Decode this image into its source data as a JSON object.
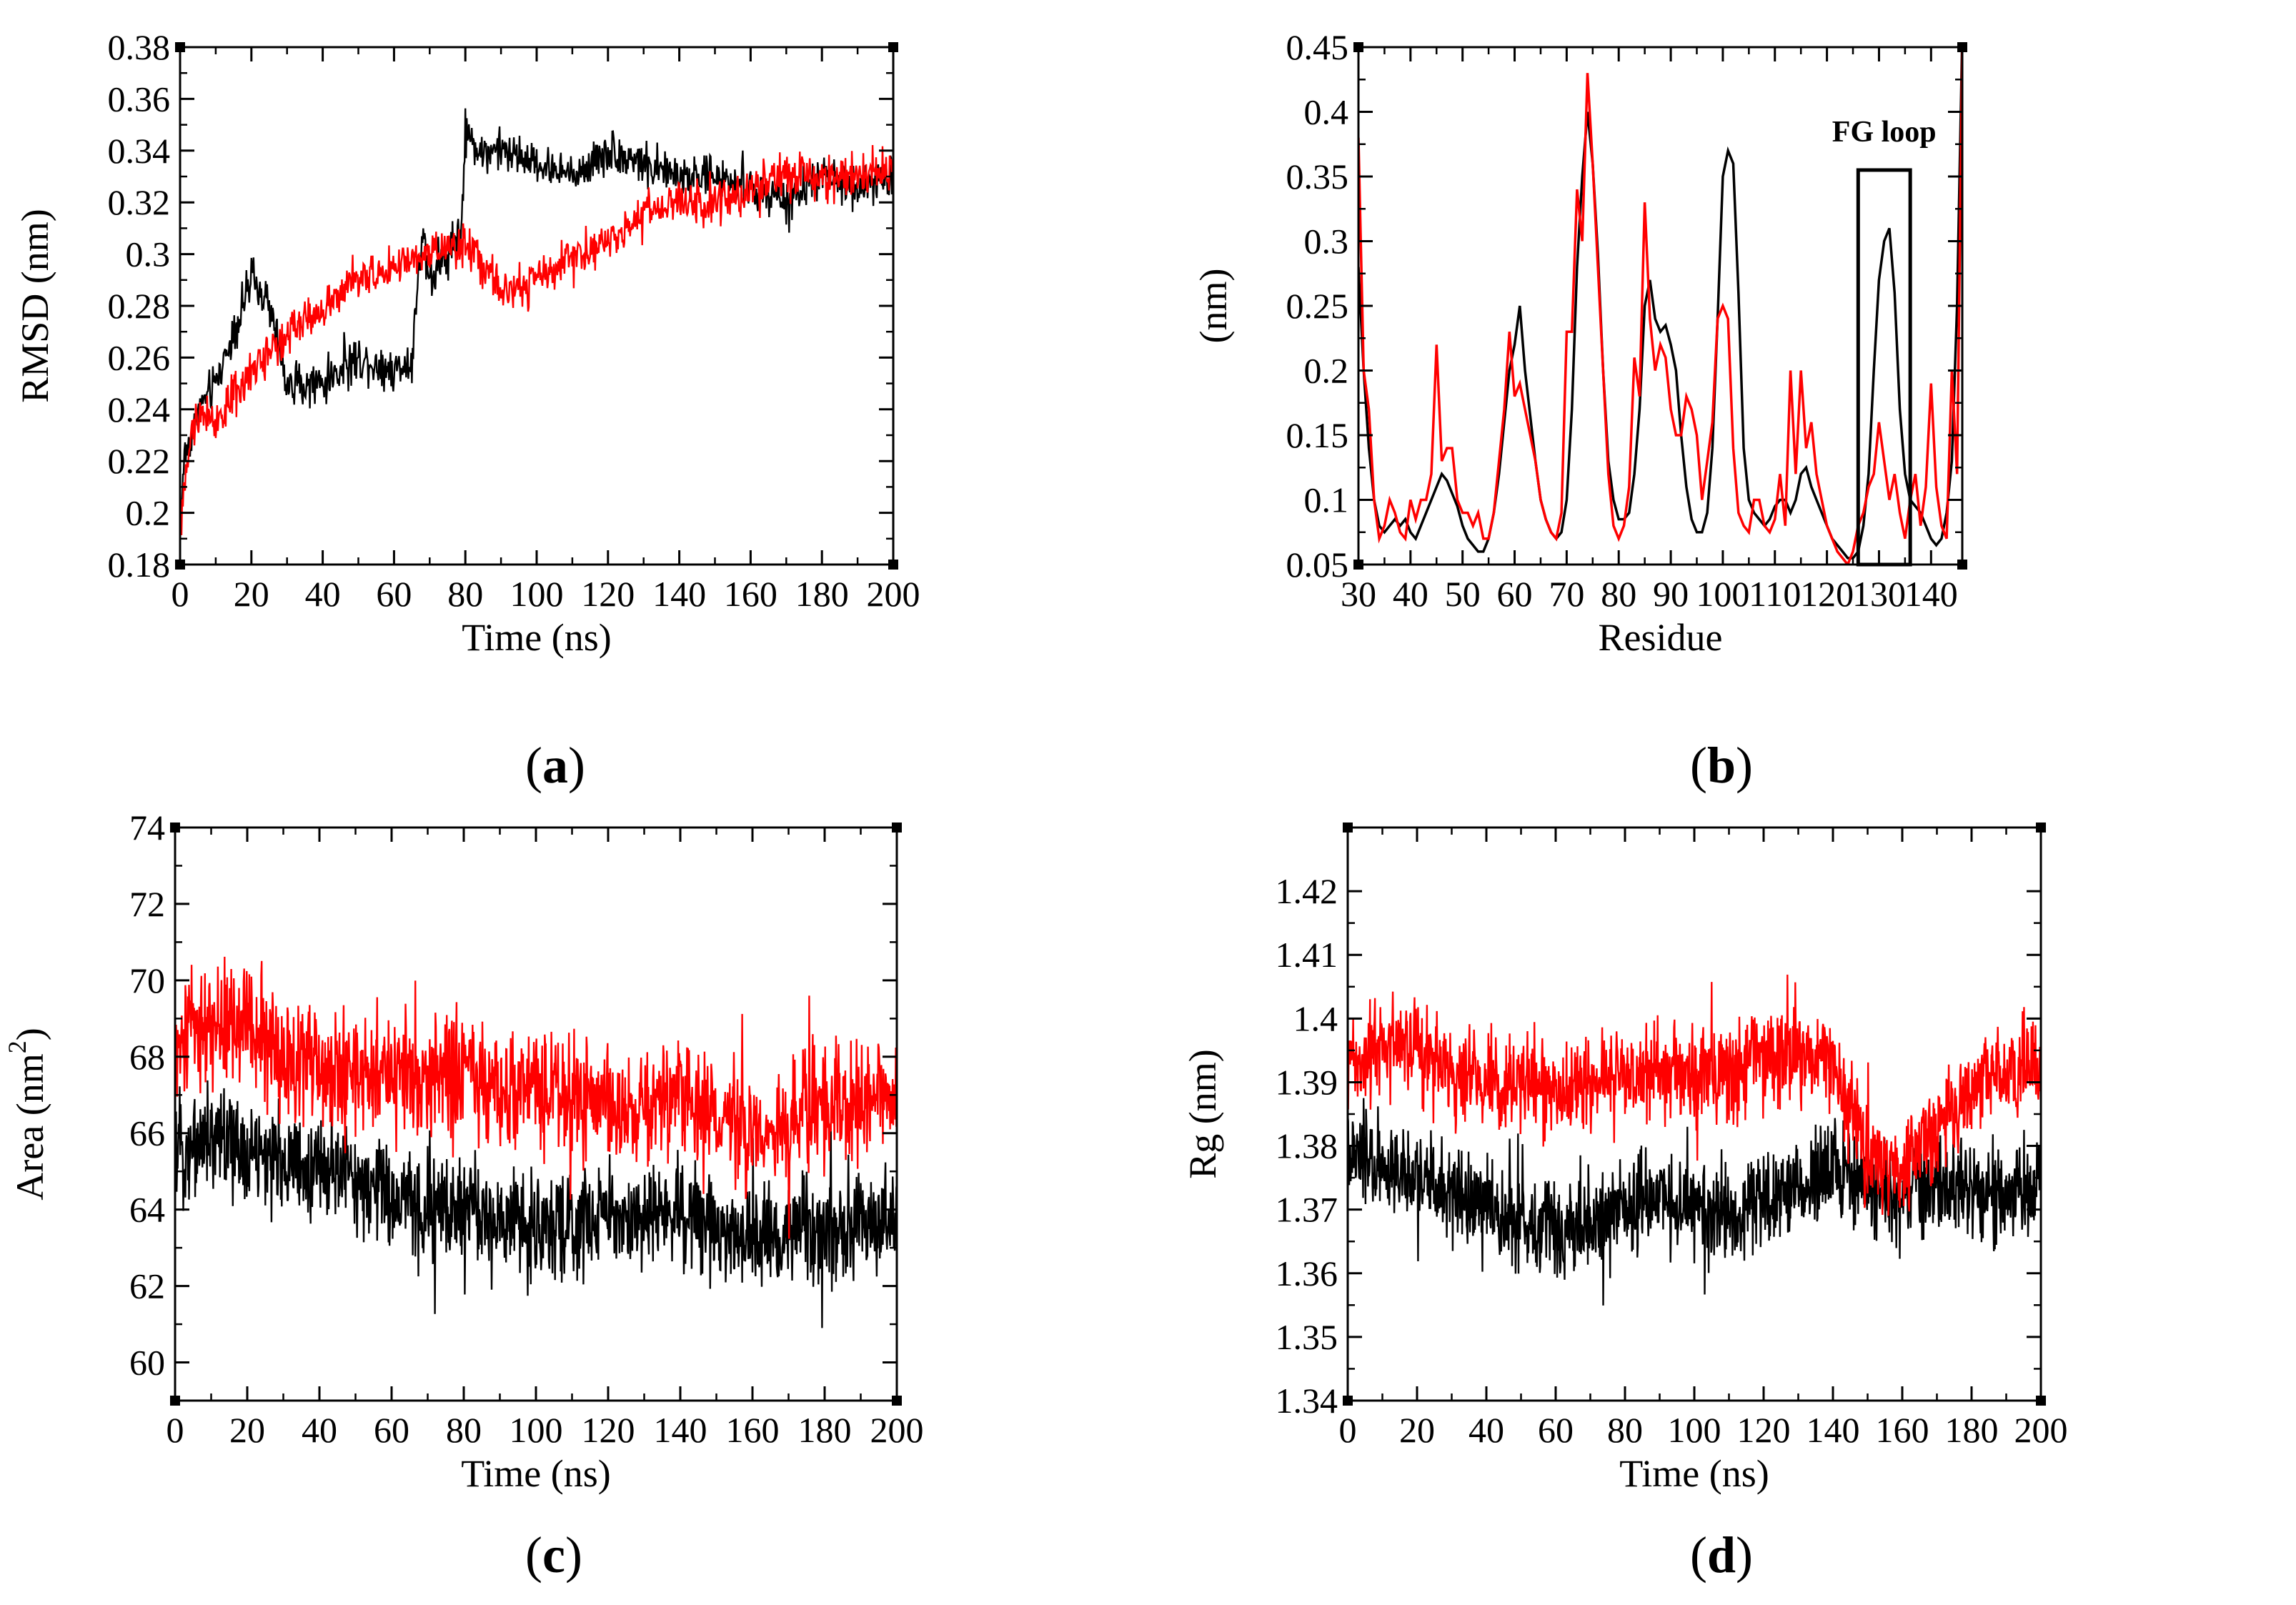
{
  "figure": {
    "captions": [
      "a",
      "b",
      "c",
      "d"
    ]
  },
  "chart_data": [
    {
      "id": "a",
      "type": "line",
      "title": "",
      "xlabel": "Time (ns)",
      "ylabel": "RMSD (nm)",
      "xlim": [
        0,
        200
      ],
      "ylim": [
        0.18,
        0.38
      ],
      "xticks": [
        0,
        20,
        40,
        60,
        80,
        100,
        120,
        140,
        160,
        180,
        200
      ],
      "yticks": [
        0.18,
        0.2,
        0.22,
        0.24,
        0.26,
        0.28,
        0.3,
        0.32,
        0.34,
        0.36,
        0.38
      ],
      "xtick_labels": [
        "0",
        "20",
        "40",
        "60",
        "80",
        "100",
        "120",
        "140",
        "160",
        "180",
        "200"
      ],
      "ytick_labels": [
        "0.18",
        "0.2",
        "0.22",
        "0.24",
        "0.26",
        "0.28",
        "0.3",
        "0.32",
        "0.34",
        "0.36",
        "0.38"
      ],
      "noise_series": [
        {
          "name": "black",
          "color": "#000000",
          "trend_x": [
            0,
            1,
            5,
            10,
            15,
            20,
            25,
            30,
            40,
            50,
            60,
            65,
            68,
            70,
            75,
            79,
            80,
            85,
            90,
            100,
            110,
            120,
            130,
            140,
            150,
            160,
            170,
            180,
            190,
            200
          ],
          "trend_y": [
            0.19,
            0.22,
            0.24,
            0.25,
            0.27,
            0.29,
            0.28,
            0.25,
            0.25,
            0.26,
            0.255,
            0.26,
            0.31,
            0.29,
            0.3,
            0.31,
            0.345,
            0.34,
            0.34,
            0.335,
            0.33,
            0.34,
            0.335,
            0.33,
            0.33,
            0.325,
            0.32,
            0.33,
            0.325,
            0.33
          ],
          "amplitude": 0.012,
          "samples": 1000
        },
        {
          "name": "red",
          "color": "#ff0000",
          "trend_x": [
            0,
            1,
            5,
            10,
            20,
            30,
            40,
            50,
            60,
            70,
            80,
            90,
            100,
            110,
            120,
            130,
            140,
            150,
            160,
            170,
            180,
            190,
            200
          ],
          "trend_y": [
            0.19,
            0.21,
            0.24,
            0.235,
            0.255,
            0.27,
            0.28,
            0.29,
            0.295,
            0.3,
            0.305,
            0.285,
            0.29,
            0.3,
            0.305,
            0.315,
            0.32,
            0.32,
            0.325,
            0.33,
            0.33,
            0.33,
            0.335
          ],
          "amplitude": 0.012,
          "samples": 1000
        }
      ]
    },
    {
      "id": "b",
      "type": "line",
      "title": "",
      "xlabel": "Residue",
      "ylabel": "(nm)",
      "xlim": [
        30,
        146
      ],
      "ylim": [
        0.05,
        0.45
      ],
      "xticks": [
        30,
        40,
        50,
        60,
        70,
        80,
        90,
        100,
        110,
        120,
        130,
        140
      ],
      "yticks": [
        0.05,
        0.1,
        0.15,
        0.2,
        0.25,
        0.3,
        0.35,
        0.4,
        0.45
      ],
      "xtick_labels": [
        "30",
        "40",
        "50",
        "60",
        "70",
        "80",
        "90",
        "100",
        "110",
        "120",
        "130",
        "140"
      ],
      "ytick_labels": [
        "0.05",
        "0.1",
        "0.15",
        "0.2",
        "0.25",
        "0.3",
        "0.35",
        "0.4",
        "0.45"
      ],
      "annotation": {
        "text": "FG loop",
        "x_range": [
          126,
          136
        ],
        "y_range": [
          0.05,
          0.355
        ]
      },
      "series": [
        {
          "name": "black",
          "color": "#000000",
          "x": [
            30,
            31,
            32,
            33,
            34,
            35,
            36,
            37,
            38,
            39,
            40,
            41,
            42,
            43,
            44,
            45,
            46,
            47,
            48,
            49,
            50,
            51,
            52,
            53,
            54,
            55,
            56,
            57,
            58,
            59,
            60,
            61,
            62,
            63,
            64,
            65,
            66,
            67,
            68,
            69,
            70,
            71,
            72,
            73,
            74,
            75,
            76,
            77,
            78,
            79,
            80,
            81,
            82,
            83,
            84,
            85,
            86,
            87,
            88,
            89,
            90,
            91,
            92,
            93,
            94,
            95,
            96,
            97,
            98,
            99,
            100,
            101,
            102,
            103,
            104,
            105,
            106,
            107,
            108,
            109,
            110,
            111,
            112,
            113,
            114,
            115,
            116,
            117,
            118,
            119,
            120,
            121,
            122,
            123,
            124,
            125,
            126,
            127,
            128,
            129,
            130,
            131,
            132,
            133,
            134,
            135,
            136,
            137,
            138,
            139,
            140,
            141,
            142,
            143,
            144,
            145,
            146
          ],
          "y": [
            0.28,
            0.2,
            0.14,
            0.1,
            0.08,
            0.075,
            0.08,
            0.085,
            0.08,
            0.085,
            0.075,
            0.07,
            0.08,
            0.09,
            0.1,
            0.11,
            0.12,
            0.115,
            0.105,
            0.095,
            0.08,
            0.07,
            0.065,
            0.06,
            0.06,
            0.07,
            0.09,
            0.12,
            0.16,
            0.2,
            0.22,
            0.25,
            0.2,
            0.165,
            0.13,
            0.1,
            0.085,
            0.075,
            0.07,
            0.075,
            0.1,
            0.17,
            0.28,
            0.35,
            0.4,
            0.36,
            0.29,
            0.2,
            0.13,
            0.1,
            0.085,
            0.085,
            0.09,
            0.12,
            0.17,
            0.25,
            0.27,
            0.24,
            0.23,
            0.235,
            0.22,
            0.2,
            0.15,
            0.11,
            0.085,
            0.075,
            0.075,
            0.09,
            0.14,
            0.24,
            0.35,
            0.37,
            0.36,
            0.26,
            0.14,
            0.1,
            0.09,
            0.085,
            0.08,
            0.085,
            0.095,
            0.1,
            0.1,
            0.09,
            0.1,
            0.12,
            0.125,
            0.11,
            0.1,
            0.09,
            0.08,
            0.07,
            0.065,
            0.06,
            0.055,
            0.055,
            0.06,
            0.08,
            0.12,
            0.2,
            0.27,
            0.3,
            0.31,
            0.26,
            0.17,
            0.12,
            0.1,
            0.095,
            0.09,
            0.08,
            0.07,
            0.065,
            0.07,
            0.09,
            0.13,
            0.25,
            0.46
          ]
        },
        {
          "name": "red",
          "color": "#ff0000",
          "x": [
            30,
            31,
            32,
            33,
            34,
            35,
            36,
            37,
            38,
            39,
            40,
            41,
            42,
            43,
            44,
            45,
            46,
            47,
            48,
            49,
            50,
            51,
            52,
            53,
            54,
            55,
            56,
            57,
            58,
            59,
            60,
            61,
            62,
            63,
            64,
            65,
            66,
            67,
            68,
            69,
            70,
            71,
            72,
            73,
            74,
            75,
            76,
            77,
            78,
            79,
            80,
            81,
            82,
            83,
            84,
            85,
            86,
            87,
            88,
            89,
            90,
            91,
            92,
            93,
            94,
            95,
            96,
            97,
            98,
            99,
            100,
            101,
            102,
            103,
            104,
            105,
            106,
            107,
            108,
            109,
            110,
            111,
            112,
            113,
            114,
            115,
            116,
            117,
            118,
            119,
            120,
            121,
            122,
            123,
            124,
            125,
            126,
            127,
            128,
            129,
            130,
            131,
            132,
            133,
            134,
            135,
            136,
            137,
            138,
            139,
            140,
            141,
            142,
            143,
            144,
            145,
            146
          ],
          "y": [
            0.38,
            0.2,
            0.17,
            0.1,
            0.07,
            0.08,
            0.1,
            0.09,
            0.075,
            0.07,
            0.1,
            0.085,
            0.1,
            0.1,
            0.12,
            0.22,
            0.13,
            0.14,
            0.14,
            0.1,
            0.09,
            0.09,
            0.08,
            0.09,
            0.07,
            0.07,
            0.09,
            0.13,
            0.17,
            0.23,
            0.18,
            0.19,
            0.17,
            0.15,
            0.13,
            0.1,
            0.085,
            0.075,
            0.07,
            0.09,
            0.23,
            0.23,
            0.34,
            0.3,
            0.43,
            0.36,
            0.28,
            0.2,
            0.12,
            0.08,
            0.07,
            0.08,
            0.11,
            0.21,
            0.18,
            0.33,
            0.24,
            0.2,
            0.22,
            0.21,
            0.17,
            0.15,
            0.15,
            0.18,
            0.17,
            0.15,
            0.1,
            0.13,
            0.16,
            0.24,
            0.25,
            0.24,
            0.14,
            0.09,
            0.08,
            0.075,
            0.1,
            0.1,
            0.08,
            0.075,
            0.085,
            0.12,
            0.08,
            0.2,
            0.12,
            0.2,
            0.14,
            0.16,
            0.12,
            0.1,
            0.08,
            0.07,
            0.06,
            0.055,
            0.05,
            0.06,
            0.08,
            0.09,
            0.11,
            0.12,
            0.16,
            0.13,
            0.1,
            0.12,
            0.09,
            0.07,
            0.1,
            0.12,
            0.08,
            0.11,
            0.19,
            0.11,
            0.08,
            0.07,
            0.2,
            0.12,
            0.45
          ]
        }
      ]
    },
    {
      "id": "c",
      "type": "line",
      "title": "",
      "xlabel": "Time (ns)",
      "ylabel": "Area (nm",
      "ylabel_superscript": "2",
      "ylabel_suffix": ")",
      "xlim": [
        0,
        200
      ],
      "ylim": [
        59,
        74
      ],
      "xticks": [
        0,
        20,
        40,
        60,
        80,
        100,
        120,
        140,
        160,
        180,
        200
      ],
      "yticks": [
        60,
        62,
        64,
        66,
        68,
        70,
        72,
        74
      ],
      "xtick_labels": [
        "0",
        "20",
        "40",
        "60",
        "80",
        "100",
        "120",
        "140",
        "160",
        "180",
        "200"
      ],
      "ytick_labels": [
        "60",
        "62",
        "64",
        "66",
        "68",
        "70",
        "72",
        "74"
      ],
      "noise_series": [
        {
          "name": "black",
          "color": "#000000",
          "trend_x": [
            0,
            10,
            20,
            30,
            40,
            50,
            60,
            70,
            80,
            90,
            100,
            110,
            120,
            130,
            140,
            150,
            160,
            170,
            180,
            190,
            200
          ],
          "trend_y": [
            65.5,
            66,
            65.5,
            65.2,
            65,
            65,
            64.2,
            64,
            64,
            63.6,
            63.6,
            63.5,
            64,
            63.8,
            64,
            63.6,
            63.2,
            63.4,
            63.6,
            63.5,
            63.6
          ],
          "amplitude": 2.0,
          "samples": 1400
        },
        {
          "name": "red",
          "color": "#ff0000",
          "trend_x": [
            0,
            10,
            20,
            30,
            40,
            50,
            60,
            70,
            80,
            90,
            100,
            110,
            120,
            130,
            140,
            150,
            160,
            170,
            180,
            190,
            200
          ],
          "trend_y": [
            68.2,
            68.8,
            69,
            68,
            67.6,
            67.5,
            67.5,
            67.4,
            67.6,
            67.2,
            67.2,
            66.8,
            67,
            66.6,
            67,
            66.4,
            66,
            66.2,
            66.6,
            66.8,
            66.8
          ],
          "amplitude": 2.3,
          "samples": 1400
        }
      ]
    },
    {
      "id": "d",
      "type": "line",
      "title": "",
      "xlabel": "Time (ns)",
      "ylabel": "Rg (nm)",
      "xlim": [
        0,
        200
      ],
      "ylim": [
        1.34,
        1.43
      ],
      "xticks": [
        0,
        20,
        40,
        60,
        80,
        100,
        120,
        140,
        160,
        180,
        200
      ],
      "yticks": [
        1.34,
        1.35,
        1.36,
        1.37,
        1.38,
        1.39,
        1.4,
        1.41,
        1.42
      ],
      "xtick_labels": [
        "0",
        "20",
        "40",
        "60",
        "80",
        "100",
        "120",
        "140",
        "160",
        "180",
        "200"
      ],
      "ytick_labels": [
        "1.34",
        "1.35",
        "1.36",
        "1.37",
        "1.38",
        "1.39",
        "1.4",
        "1.41",
        "1.42"
      ],
      "noise_series": [
        {
          "name": "black",
          "color": "#000000",
          "trend_x": [
            0,
            10,
            20,
            30,
            40,
            50,
            60,
            70,
            80,
            90,
            100,
            110,
            120,
            130,
            140,
            150,
            160,
            170,
            180,
            190,
            200
          ],
          "trend_y": [
            1.378,
            1.377,
            1.375,
            1.372,
            1.37,
            1.368,
            1.366,
            1.368,
            1.371,
            1.371,
            1.37,
            1.369,
            1.371,
            1.373,
            1.377,
            1.373,
            1.372,
            1.374,
            1.373,
            1.372,
            1.374
          ],
          "amplitude": 0.011,
          "samples": 1400
        },
        {
          "name": "red",
          "color": "#ff0000",
          "trend_x": [
            0,
            10,
            20,
            30,
            40,
            50,
            60,
            70,
            80,
            90,
            100,
            110,
            120,
            130,
            140,
            150,
            160,
            170,
            180,
            190,
            200
          ],
          "trend_y": [
            1.393,
            1.396,
            1.396,
            1.392,
            1.39,
            1.39,
            1.389,
            1.39,
            1.392,
            1.392,
            1.391,
            1.392,
            1.394,
            1.395,
            1.394,
            1.378,
            1.377,
            1.383,
            1.388,
            1.392,
            1.393
          ],
          "amplitude": 0.011,
          "samples": 1400
        }
      ]
    }
  ]
}
